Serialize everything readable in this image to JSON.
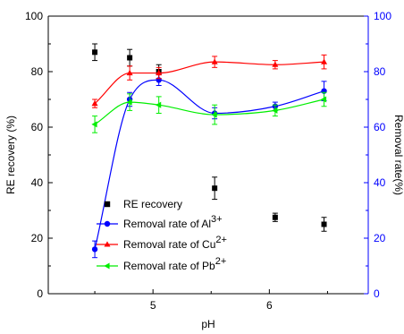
{
  "chart_data": {
    "type": "scatter",
    "xlabel": "pH",
    "ylabel_left": "RE recovery (%)",
    "ylabel_right": "Removal rate(%)",
    "xlim": [
      4.1,
      6.85
    ],
    "ylim_left": [
      0,
      100
    ],
    "ylim_right": [
      0,
      100
    ],
    "x_ticks": [
      5,
      6
    ],
    "x_tick_labels": [
      "5",
      "6"
    ],
    "y_ticks": [
      0,
      20,
      40,
      60,
      80,
      100
    ],
    "y_tick_labels": [
      "0",
      "20",
      "40",
      "60",
      "80",
      "100"
    ],
    "grid": false,
    "legend_position": "lower-center",
    "series": [
      {
        "name": "RE recovery",
        "marker": "square",
        "color": "#000000",
        "axis": "left",
        "fit_curve": false,
        "x": [
          4.5,
          4.8,
          5.05,
          5.53,
          6.05,
          6.47
        ],
        "y": [
          87,
          85,
          80,
          38,
          27.5,
          25
        ],
        "err": [
          3,
          3,
          2.5,
          4,
          1.5,
          2.5
        ]
      },
      {
        "name": "Removal rate of Al",
        "superscript": "3+",
        "marker": "circle",
        "color": "#0000ff",
        "axis": "right",
        "fit_curve": true,
        "x": [
          4.5,
          4.8,
          5.05,
          5.53,
          6.05,
          6.47
        ],
        "y": [
          16,
          70,
          77,
          65,
          67.5,
          73
        ],
        "err": [
          3,
          2.5,
          2,
          2,
          1.5,
          3.5
        ]
      },
      {
        "name": "Removal rate of Cu",
        "superscript": "2+",
        "marker": "triangle-up",
        "color": "#ff0000",
        "axis": "right",
        "fit_curve": true,
        "x": [
          4.5,
          4.8,
          5.05,
          5.53,
          6.05,
          6.47
        ],
        "y": [
          68.5,
          79.5,
          79.5,
          83.5,
          82.5,
          83.5
        ],
        "err": [
          1.5,
          2.5,
          2,
          2,
          1.5,
          2.5
        ]
      },
      {
        "name": "Removal rate of Pb",
        "superscript": "2+",
        "marker": "triangle-left",
        "color": "#00ee00",
        "axis": "right",
        "fit_curve": true,
        "x": [
          4.5,
          4.8,
          5.05,
          5.53,
          6.05,
          6.47
        ],
        "y": [
          61,
          69,
          68,
          64.5,
          66,
          70
        ],
        "err": [
          3,
          3,
          3,
          3.5,
          2,
          2.5
        ]
      }
    ]
  }
}
